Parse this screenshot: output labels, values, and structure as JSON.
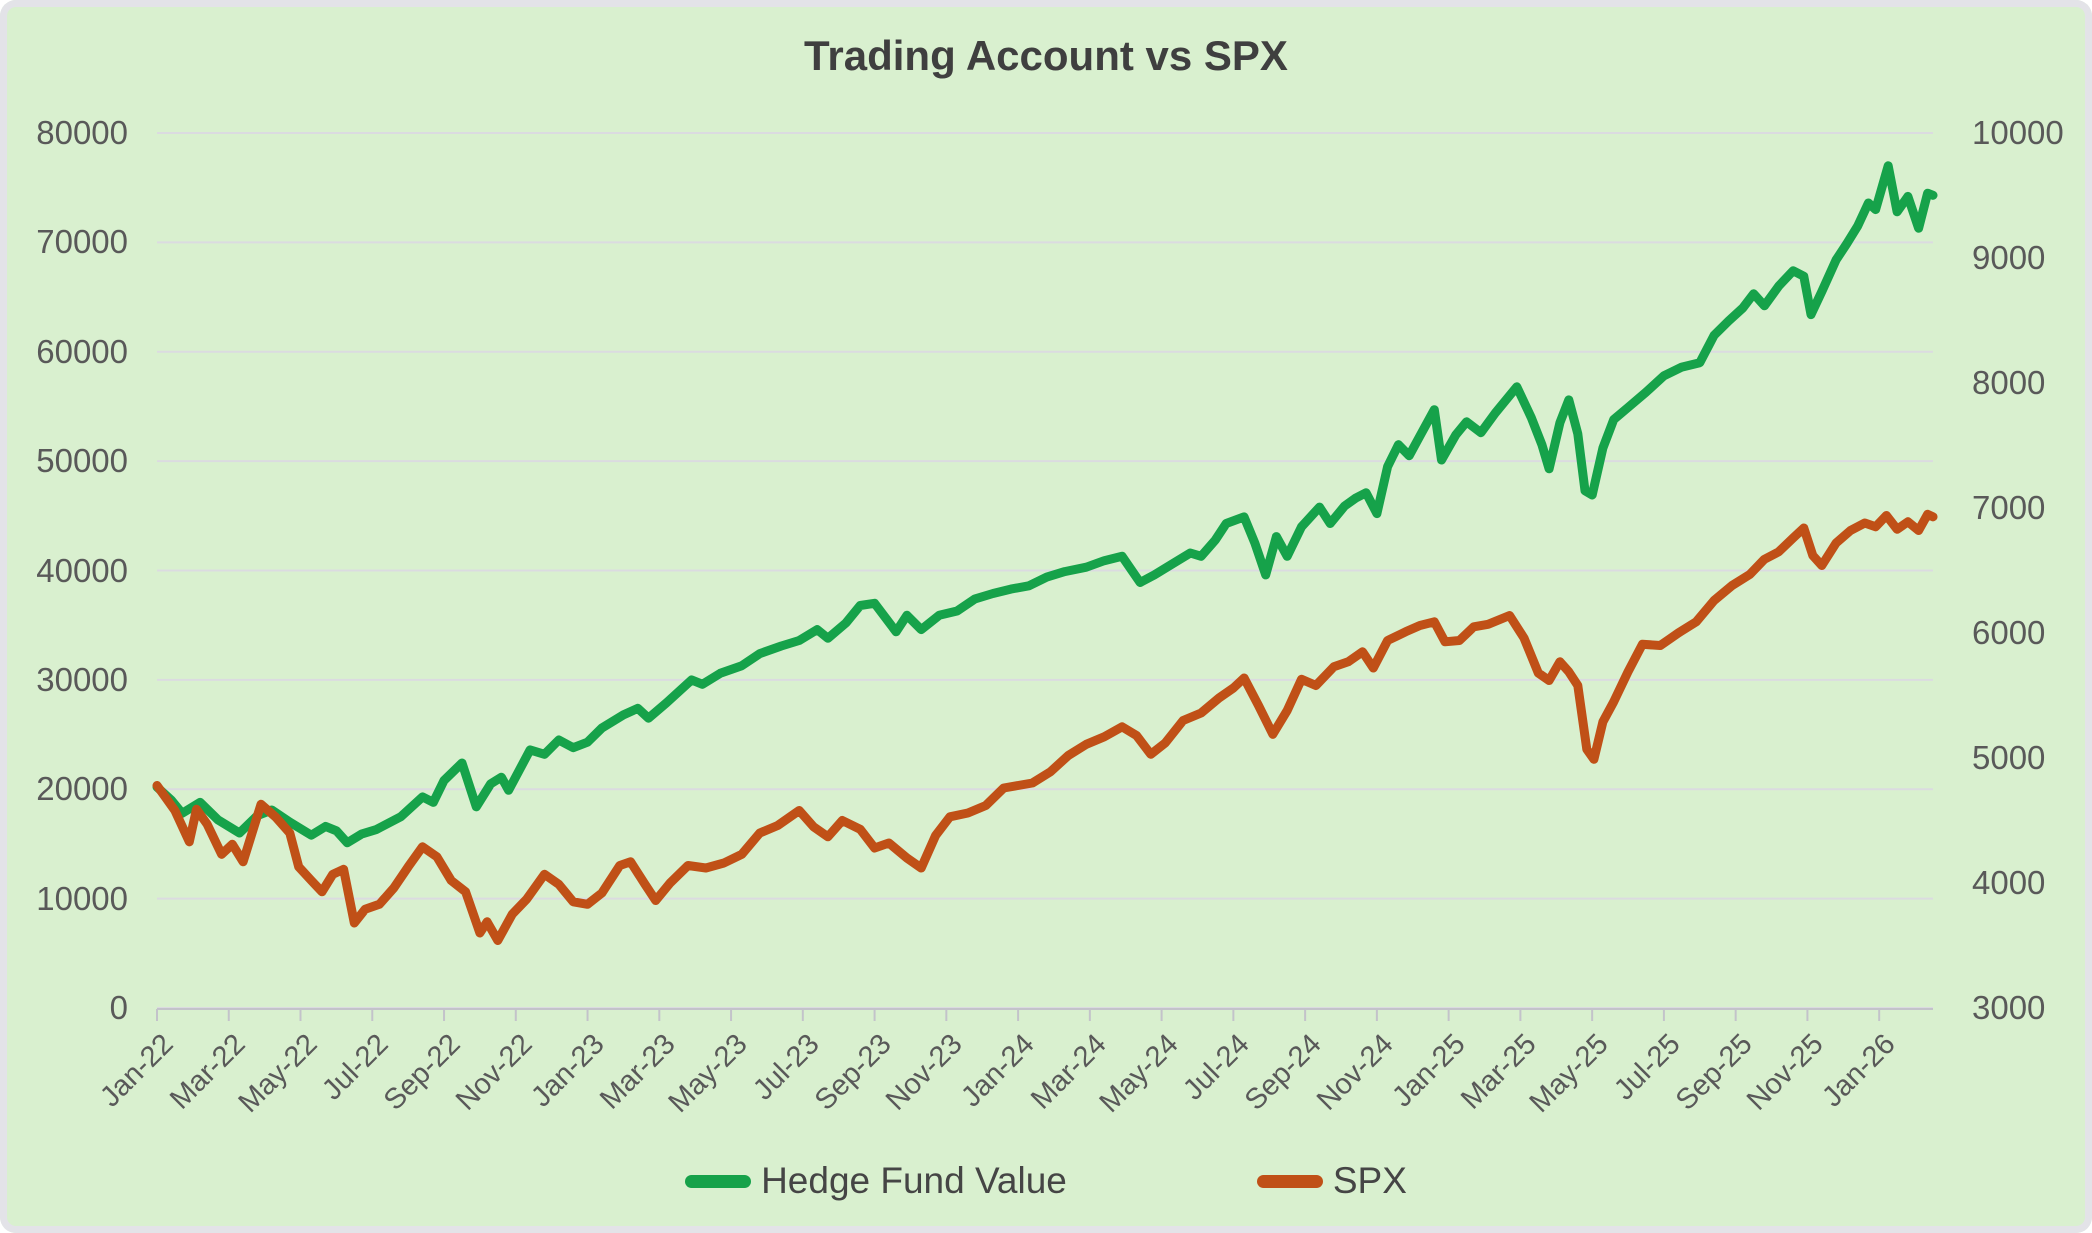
{
  "title": "Trading Account vs SPX",
  "colors": {
    "background": "#d9f0cf",
    "frame_border": "#e3e3e8",
    "gridline": "#dbdbe0",
    "axis_line": "#c3c3ca",
    "title_text": "#3f3f3f",
    "axis_text": "#595959",
    "legend_text": "#454545",
    "hedge_fund_line": "#16a24a",
    "spx_line": "#c05017"
  },
  "legend": {
    "items": [
      {
        "label": "Hedge Fund Value",
        "color": "#16a24a"
      },
      {
        "label": "SPX",
        "color": "#c05017"
      }
    ]
  },
  "chart_data": {
    "type": "line",
    "title": "Trading Account vs SPX",
    "grid": "horizontal",
    "legend_position": "bottom",
    "x_unit": "months since Jan-2022 (fractional, 0 = Jan-22)",
    "x_range": [
      0,
      49.5
    ],
    "x_tick_step_months": 2,
    "x_tick_labels": [
      "Jan-22",
      "Mar-22",
      "May-22",
      "Jul-22",
      "Sep-22",
      "Nov-22",
      "Jan-23",
      "Mar-23",
      "May-23",
      "Jul-23",
      "Sep-23",
      "Nov-23",
      "Jan-24",
      "Mar-24",
      "May-24",
      "Jul-24",
      "Sep-24",
      "Nov-24",
      "Jan-25",
      "Mar-25",
      "May-25",
      "Jul-25",
      "Sep-25",
      "Nov-25",
      "Jan-26"
    ],
    "left_axis": {
      "series": "Hedge Fund Value",
      "min": 0,
      "max": 80000,
      "step": 10000,
      "tick_labels": [
        "0",
        "10000",
        "20000",
        "30000",
        "40000",
        "50000",
        "60000",
        "70000",
        "80000"
      ]
    },
    "right_axis": {
      "series": "SPX",
      "min": 3000,
      "max": 10000,
      "step": 1000,
      "tick_labels": [
        "3000",
        "4000",
        "5000",
        "6000",
        "7000",
        "8000",
        "9000",
        "10000"
      ]
    },
    "series": [
      {
        "name": "Hedge Fund Value",
        "axis": "left",
        "color": "#16a24a",
        "points": [
          [
            0,
            20200
          ],
          [
            0.4,
            19000
          ],
          [
            0.7,
            17800
          ],
          [
            1.2,
            18800
          ],
          [
            1.7,
            17200
          ],
          [
            2.3,
            16000
          ],
          [
            2.8,
            17600
          ],
          [
            3.2,
            18100
          ],
          [
            3.7,
            17000
          ],
          [
            4.3,
            15800
          ],
          [
            4.7,
            16600
          ],
          [
            5.0,
            16200
          ],
          [
            5.3,
            15100
          ],
          [
            5.7,
            15900
          ],
          [
            6.1,
            16300
          ],
          [
            6.8,
            17500
          ],
          [
            7.4,
            19300
          ],
          [
            7.7,
            18800
          ],
          [
            8.0,
            20800
          ],
          [
            8.5,
            22400
          ],
          [
            8.9,
            18400
          ],
          [
            9.3,
            20500
          ],
          [
            9.6,
            21100
          ],
          [
            9.8,
            19900
          ],
          [
            10.4,
            23600
          ],
          [
            10.8,
            23200
          ],
          [
            11.2,
            24500
          ],
          [
            11.6,
            23800
          ],
          [
            12.0,
            24300
          ],
          [
            12.4,
            25600
          ],
          [
            13.0,
            26800
          ],
          [
            13.4,
            27400
          ],
          [
            13.7,
            26500
          ],
          [
            14.2,
            27900
          ],
          [
            14.9,
            30000
          ],
          [
            15.2,
            29600
          ],
          [
            15.7,
            30600
          ],
          [
            16.3,
            31300
          ],
          [
            16.8,
            32400
          ],
          [
            17.4,
            33100
          ],
          [
            17.9,
            33600
          ],
          [
            18.4,
            34600
          ],
          [
            18.7,
            33800
          ],
          [
            19.2,
            35200
          ],
          [
            19.6,
            36800
          ],
          [
            20.0,
            37000
          ],
          [
            20.6,
            34400
          ],
          [
            20.9,
            35900
          ],
          [
            21.3,
            34600
          ],
          [
            21.8,
            35900
          ],
          [
            22.3,
            36300
          ],
          [
            22.8,
            37400
          ],
          [
            23.3,
            37900
          ],
          [
            23.8,
            38300
          ],
          [
            24.3,
            38600
          ],
          [
            24.8,
            39400
          ],
          [
            25.3,
            39900
          ],
          [
            25.9,
            40300
          ],
          [
            26.4,
            40900
          ],
          [
            26.9,
            41300
          ],
          [
            27.4,
            38900
          ],
          [
            27.8,
            39600
          ],
          [
            28.3,
            40600
          ],
          [
            28.8,
            41600
          ],
          [
            29.1,
            41300
          ],
          [
            29.5,
            42800
          ],
          [
            29.8,
            44300
          ],
          [
            30.3,
            44900
          ],
          [
            30.6,
            42500
          ],
          [
            30.9,
            39600
          ],
          [
            31.2,
            43100
          ],
          [
            31.5,
            41300
          ],
          [
            31.9,
            44000
          ],
          [
            32.4,
            45800
          ],
          [
            32.7,
            44300
          ],
          [
            33.1,
            45900
          ],
          [
            33.4,
            46600
          ],
          [
            33.7,
            47100
          ],
          [
            34.0,
            45200
          ],
          [
            34.3,
            49500
          ],
          [
            34.6,
            51500
          ],
          [
            34.9,
            50500
          ],
          [
            35.2,
            52300
          ],
          [
            35.6,
            54700
          ],
          [
            35.8,
            50100
          ],
          [
            36.2,
            52400
          ],
          [
            36.5,
            53600
          ],
          [
            36.9,
            52600
          ],
          [
            37.3,
            54400
          ],
          [
            37.9,
            56800
          ],
          [
            38.3,
            54000
          ],
          [
            38.6,
            51500
          ],
          [
            38.8,
            49300
          ],
          [
            39.1,
            53500
          ],
          [
            39.35,
            55600
          ],
          [
            39.6,
            52500
          ],
          [
            39.8,
            47300
          ],
          [
            40.0,
            46900
          ],
          [
            40.3,
            51200
          ],
          [
            40.6,
            53800
          ],
          [
            41.0,
            54900
          ],
          [
            41.5,
            56300
          ],
          [
            42.0,
            57800
          ],
          [
            42.5,
            58600
          ],
          [
            43.0,
            59000
          ],
          [
            43.4,
            61500
          ],
          [
            43.8,
            62800
          ],
          [
            44.2,
            64000
          ],
          [
            44.5,
            65300
          ],
          [
            44.8,
            64200
          ],
          [
            45.2,
            66000
          ],
          [
            45.6,
            67400
          ],
          [
            45.9,
            66900
          ],
          [
            46.1,
            63400
          ],
          [
            46.4,
            65500
          ],
          [
            46.8,
            68400
          ],
          [
            47.1,
            69900
          ],
          [
            47.4,
            71500
          ],
          [
            47.7,
            73600
          ],
          [
            47.9,
            73000
          ],
          [
            48.25,
            77000
          ],
          [
            48.5,
            72800
          ],
          [
            48.8,
            74200
          ],
          [
            49.1,
            71300
          ],
          [
            49.35,
            74500
          ],
          [
            49.5,
            74300
          ]
        ]
      },
      {
        "name": "SPX",
        "axis": "right",
        "color": "#c05017",
        "points": [
          [
            0,
            4780
          ],
          [
            0.2,
            4700
          ],
          [
            0.5,
            4580
          ],
          [
            0.9,
            4330
          ],
          [
            1.1,
            4590
          ],
          [
            1.4,
            4470
          ],
          [
            1.8,
            4230
          ],
          [
            2.1,
            4310
          ],
          [
            2.4,
            4170
          ],
          [
            2.9,
            4630
          ],
          [
            3.3,
            4530
          ],
          [
            3.7,
            4400
          ],
          [
            3.95,
            4130
          ],
          [
            4.3,
            4020
          ],
          [
            4.6,
            3930
          ],
          [
            4.9,
            4070
          ],
          [
            5.2,
            4110
          ],
          [
            5.5,
            3680
          ],
          [
            5.8,
            3790
          ],
          [
            6.2,
            3830
          ],
          [
            6.6,
            3960
          ],
          [
            7.0,
            4130
          ],
          [
            7.4,
            4290
          ],
          [
            7.8,
            4210
          ],
          [
            8.2,
            4020
          ],
          [
            8.6,
            3930
          ],
          [
            9.0,
            3600
          ],
          [
            9.2,
            3690
          ],
          [
            9.5,
            3540
          ],
          [
            9.9,
            3750
          ],
          [
            10.3,
            3870
          ],
          [
            10.8,
            4070
          ],
          [
            11.2,
            3990
          ],
          [
            11.6,
            3850
          ],
          [
            12.0,
            3830
          ],
          [
            12.4,
            3920
          ],
          [
            12.9,
            4140
          ],
          [
            13.2,
            4170
          ],
          [
            13.6,
            3990
          ],
          [
            13.9,
            3860
          ],
          [
            14.3,
            4000
          ],
          [
            14.8,
            4140
          ],
          [
            15.3,
            4120
          ],
          [
            15.8,
            4160
          ],
          [
            16.3,
            4230
          ],
          [
            16.8,
            4400
          ],
          [
            17.3,
            4460
          ],
          [
            17.9,
            4580
          ],
          [
            18.3,
            4450
          ],
          [
            18.7,
            4370
          ],
          [
            19.1,
            4500
          ],
          [
            19.6,
            4430
          ],
          [
            20.0,
            4280
          ],
          [
            20.4,
            4320
          ],
          [
            20.9,
            4200
          ],
          [
            21.3,
            4120
          ],
          [
            21.7,
            4380
          ],
          [
            22.1,
            4530
          ],
          [
            22.6,
            4560
          ],
          [
            23.1,
            4620
          ],
          [
            23.6,
            4760
          ],
          [
            24.0,
            4780
          ],
          [
            24.4,
            4800
          ],
          [
            24.9,
            4890
          ],
          [
            25.4,
            5020
          ],
          [
            25.9,
            5110
          ],
          [
            26.4,
            5170
          ],
          [
            26.9,
            5250
          ],
          [
            27.3,
            5180
          ],
          [
            27.7,
            5030
          ],
          [
            28.1,
            5120
          ],
          [
            28.6,
            5300
          ],
          [
            29.1,
            5360
          ],
          [
            29.6,
            5480
          ],
          [
            30.0,
            5560
          ],
          [
            30.3,
            5640
          ],
          [
            30.7,
            5420
          ],
          [
            31.1,
            5190
          ],
          [
            31.5,
            5380
          ],
          [
            31.9,
            5630
          ],
          [
            32.3,
            5580
          ],
          [
            32.8,
            5730
          ],
          [
            33.2,
            5770
          ],
          [
            33.6,
            5850
          ],
          [
            33.9,
            5720
          ],
          [
            34.3,
            5940
          ],
          [
            34.8,
            6010
          ],
          [
            35.2,
            6060
          ],
          [
            35.6,
            6090
          ],
          [
            35.9,
            5930
          ],
          [
            36.3,
            5940
          ],
          [
            36.7,
            6050
          ],
          [
            37.1,
            6070
          ],
          [
            37.7,
            6140
          ],
          [
            38.1,
            5960
          ],
          [
            38.5,
            5680
          ],
          [
            38.8,
            5620
          ],
          [
            39.1,
            5770
          ],
          [
            39.35,
            5690
          ],
          [
            39.6,
            5580
          ],
          [
            39.85,
            5070
          ],
          [
            40.05,
            4990
          ],
          [
            40.3,
            5290
          ],
          [
            40.6,
            5450
          ],
          [
            41.0,
            5690
          ],
          [
            41.4,
            5910
          ],
          [
            41.9,
            5900
          ],
          [
            42.4,
            6000
          ],
          [
            42.9,
            6090
          ],
          [
            43.4,
            6260
          ],
          [
            43.9,
            6380
          ],
          [
            44.4,
            6470
          ],
          [
            44.8,
            6590
          ],
          [
            45.2,
            6650
          ],
          [
            45.6,
            6760
          ],
          [
            45.9,
            6840
          ],
          [
            46.15,
            6620
          ],
          [
            46.4,
            6540
          ],
          [
            46.8,
            6720
          ],
          [
            47.2,
            6820
          ],
          [
            47.6,
            6880
          ],
          [
            47.9,
            6850
          ],
          [
            48.2,
            6940
          ],
          [
            48.5,
            6830
          ],
          [
            48.8,
            6890
          ],
          [
            49.1,
            6820
          ],
          [
            49.35,
            6950
          ],
          [
            49.5,
            6930
          ]
        ]
      }
    ]
  }
}
